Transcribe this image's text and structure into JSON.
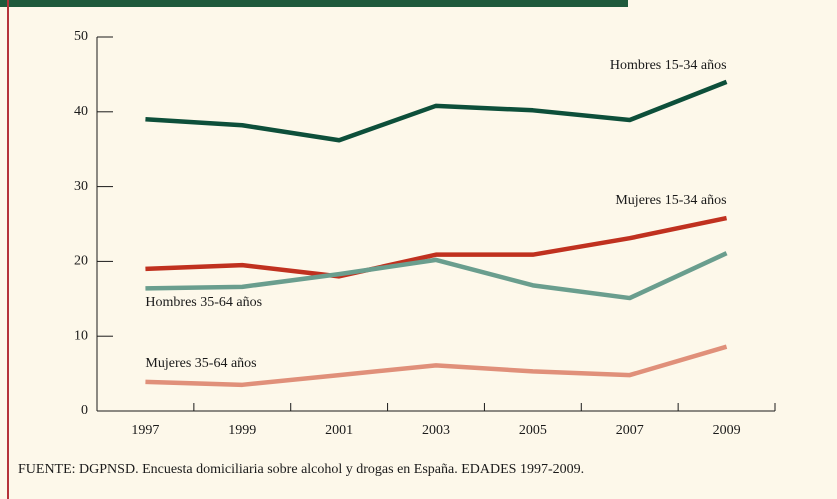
{
  "chart_data": {
    "type": "line",
    "categories": [
      "1997",
      "1999",
      "2001",
      "2003",
      "2005",
      "2007",
      "2009"
    ],
    "series": [
      {
        "name": "Hombres 15-34 años",
        "color": "#0d4f3a",
        "values": [
          39.0,
          38.2,
          36.2,
          40.8,
          40.2,
          38.9,
          44.0
        ]
      },
      {
        "name": "Mujeres 15-34 años",
        "color": "#c0311f",
        "values": [
          19.0,
          19.5,
          18.0,
          20.9,
          20.9,
          23.1,
          25.8
        ]
      },
      {
        "name": "Hombres 35-64 años",
        "color": "#6a9e8e",
        "values": [
          16.4,
          16.6,
          18.3,
          20.2,
          16.8,
          15.1,
          21.1
        ]
      },
      {
        "name": "Mujeres 35-64 años",
        "color": "#e0907a",
        "values": [
          3.9,
          3.5,
          4.8,
          6.1,
          5.3,
          4.8,
          8.6
        ]
      }
    ],
    "ylim": [
      0,
      50
    ],
    "yticks": [
      0,
      10,
      20,
      30,
      40,
      50
    ],
    "source": "FUENTE: DGPNSD. Encuesta domiciliaria sobre alcohol y drogas en España. EDADES 1997-2009."
  }
}
